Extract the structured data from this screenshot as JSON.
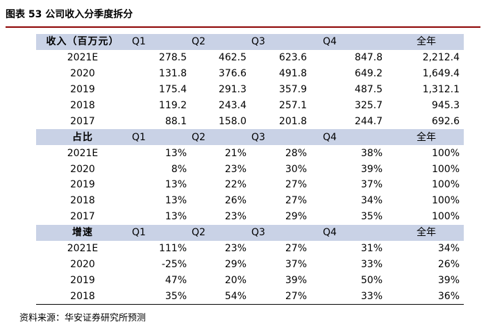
{
  "title": "图表 53 公司收入分季度拆分",
  "columns": [
    "Q1",
    "Q2",
    "Q3",
    "Q4",
    "全年"
  ],
  "sections": [
    {
      "label": "收入（百万元）",
      "rows": [
        {
          "year": "2021E",
          "values": [
            "278.5",
            "462.5",
            "623.6",
            "847.8",
            "2,212.4"
          ]
        },
        {
          "year": "2020",
          "values": [
            "131.8",
            "376.6",
            "491.8",
            "649.2",
            "1,649.4"
          ]
        },
        {
          "year": "2019",
          "values": [
            "175.4",
            "291.3",
            "357.9",
            "487.5",
            "1,312.1"
          ]
        },
        {
          "year": "2018",
          "values": [
            "119.2",
            "243.4",
            "257.1",
            "325.7",
            "945.3"
          ]
        },
        {
          "year": "2017",
          "values": [
            "88.1",
            "158.0",
            "201.8",
            "244.7",
            "692.6"
          ]
        }
      ]
    },
    {
      "label": "占比",
      "rows": [
        {
          "year": "2021E",
          "values": [
            "13%",
            "21%",
            "28%",
            "38%",
            "100%"
          ]
        },
        {
          "year": "2020",
          "values": [
            "8%",
            "23%",
            "30%",
            "39%",
            "100%"
          ]
        },
        {
          "year": "2019",
          "values": [
            "13%",
            "22%",
            "27%",
            "37%",
            "100%"
          ]
        },
        {
          "year": "2018",
          "values": [
            "13%",
            "26%",
            "27%",
            "34%",
            "100%"
          ]
        },
        {
          "year": "2017",
          "values": [
            "13%",
            "23%",
            "29%",
            "35%",
            "100%"
          ]
        }
      ]
    },
    {
      "label": "增速",
      "rows": [
        {
          "year": "2021E",
          "values": [
            "111%",
            "23%",
            "27%",
            "31%",
            "34%"
          ]
        },
        {
          "year": "2020",
          "values": [
            "-25%",
            "29%",
            "37%",
            "33%",
            "26%"
          ]
        },
        {
          "year": "2019",
          "values": [
            "47%",
            "20%",
            "39%",
            "50%",
            "39%"
          ]
        },
        {
          "year": "2018",
          "values": [
            "35%",
            "54%",
            "27%",
            "33%",
            "36%"
          ]
        }
      ]
    }
  ],
  "source": "资料来源：华安证券研究所预测"
}
